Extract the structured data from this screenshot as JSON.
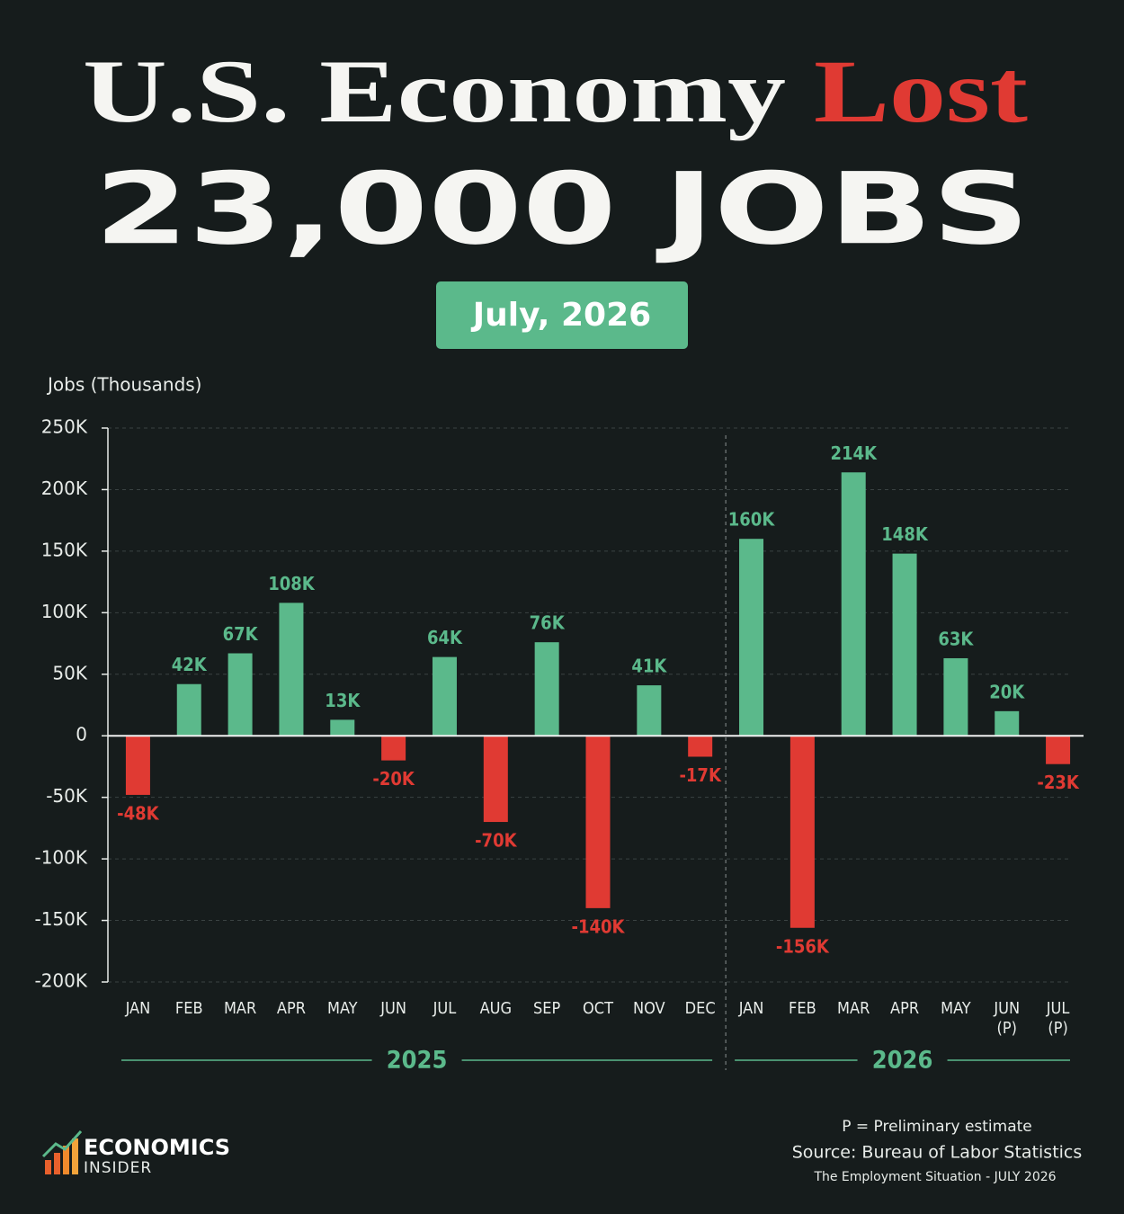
{
  "chart_data": {
    "type": "bar",
    "title_prefix": "U.S. Economy",
    "title_highlight": "Lost",
    "headline": "23,000 JOBS",
    "badge": "July, 2026",
    "y_axis_label": "Jobs (Thousands)",
    "groups": [
      {
        "name": "2025",
        "categories": [
          "JAN",
          "FEB",
          "MAR",
          "APR",
          "MAY",
          "JUN",
          "JUL",
          "AUG",
          "SEP",
          "OCT",
          "NOV",
          "DEC"
        ]
      },
      {
        "name": "2026",
        "categories": [
          "JAN",
          "FEB",
          "MAR",
          "APR",
          "MAY",
          "JUN (P)",
          "JUL (P)"
        ]
      }
    ],
    "values": [
      -48,
      42,
      67,
      108,
      13,
      -20,
      64,
      -70,
      76,
      -140,
      41,
      -17,
      160,
      -156,
      214,
      148,
      63,
      20,
      -23
    ],
    "value_labels": [
      "-48K",
      "42K",
      "67K",
      "108K",
      "13K",
      "-20K",
      "64K",
      "-70K",
      "76K",
      "-140K",
      "41K",
      "-17K",
      "160K",
      "-156K",
      "214K",
      "148K",
      "63K",
      "20K",
      "-23K"
    ],
    "positive_color": "#5bb98b",
    "negative_color": "#e03a33",
    "ylim": [
      -200,
      250
    ],
    "yticks": [
      {
        "value": -200,
        "label": "-200K"
      },
      {
        "value": -150,
        "label": "-150K"
      },
      {
        "value": -100,
        "label": "-100K"
      },
      {
        "value": -50,
        "label": "-50K"
      },
      0,
      {
        "value": 50,
        "label": "50K"
      },
      {
        "value": 100,
        "label": "100K"
      },
      {
        "value": 150,
        "label": "150K"
      },
      {
        "value": 200,
        "label": "200K"
      },
      {
        "value": 250,
        "label": "250K"
      }
    ],
    "grid": true,
    "footnote": "P = Preliminary estimate",
    "source": "Source: Bureau of Labor Statistics",
    "report": "The Employment Situation - JULY 2026",
    "brand": "ECONOMICS",
    "brand_sub": "INSIDER"
  }
}
